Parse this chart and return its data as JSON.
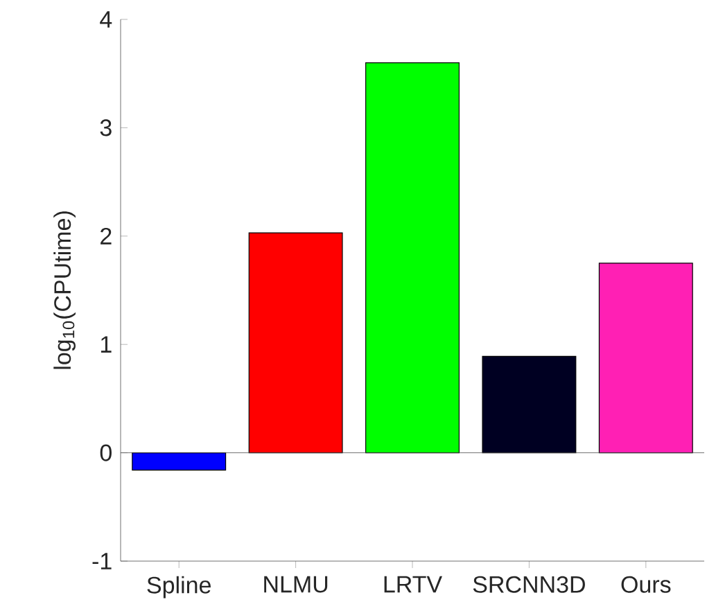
{
  "chart_data": {
    "type": "bar",
    "categories": [
      "Spline",
      "NLMU",
      "LRTV",
      "SRCNN3D",
      "Ours"
    ],
    "values": [
      -0.16,
      2.03,
      3.6,
      0.89,
      1.75
    ],
    "colors": [
      "#0000ff",
      "#ff0000",
      "#00ff00",
      "#000022",
      "#ff20b4"
    ],
    "ylabel": "log$_{10}$(CPUtime)",
    "ylim": [
      -1,
      4
    ],
    "yticks": [
      -1,
      0,
      1,
      2,
      3,
      4
    ]
  }
}
